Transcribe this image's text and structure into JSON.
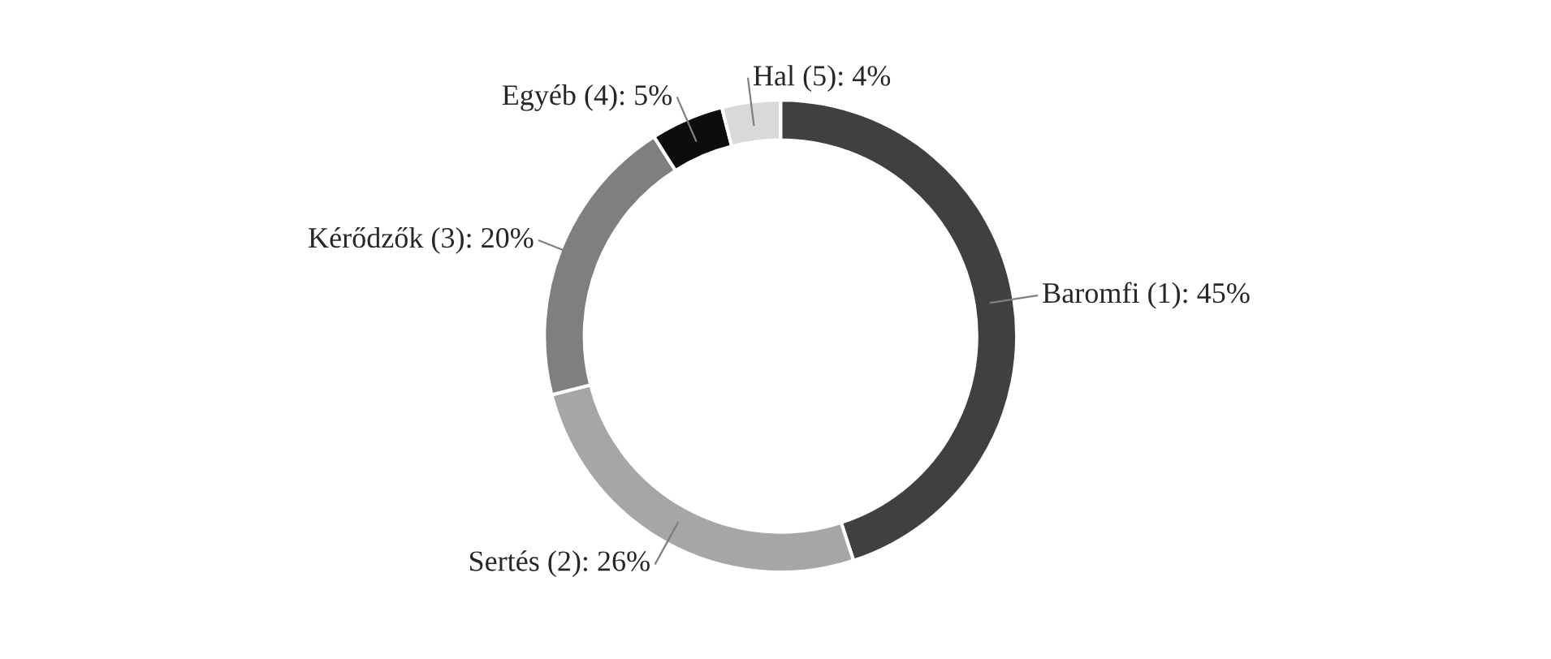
{
  "chart_data": {
    "type": "donut",
    "categories": [
      "Baromfi (1)",
      "Sertés (2)",
      "Kérődzők (3)",
      "Egyéb (4)",
      "Hal (5)"
    ],
    "values": [
      45,
      26,
      20,
      5,
      4
    ],
    "value_labels": [
      "45%",
      "26%",
      "20%",
      "5%",
      "4%"
    ],
    "colors": [
      "#404040",
      "#a6a6a6",
      "#7f7f7f",
      "#0d0d0d",
      "#d9d9d9"
    ],
    "legend": false
  }
}
